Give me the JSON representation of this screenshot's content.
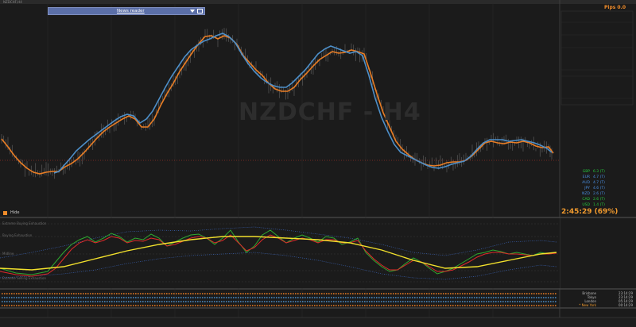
{
  "window": {
    "title": "NZDCHF,H4"
  },
  "news_reader": {
    "label": "News reader"
  },
  "watermark": "NZDCHF - H4",
  "pips": "Pips 0.0",
  "timer": "2:45:29 (69%)",
  "hide_button": "Hide",
  "indicator_labels": [
    "Extreme Buying Exhaustion",
    "Buying Exhaustion",
    "Midline",
    "Extreme Selling Exhaustion"
  ],
  "sessions": [
    {
      "name": "Brisbane",
      "value": "23:14:29"
    },
    {
      "name": "Tokyo",
      "value": "23:14:29"
    },
    {
      "name": "London",
      "value": "05:14:29"
    },
    {
      "name": "* New York",
      "value": "00:14:29"
    }
  ],
  "currency_strength": [
    {
      "name": "GBP",
      "value": "6.3 (T)",
      "color": "#27c93f"
    },
    {
      "name": "EUR",
      "value": "4.7 (T)",
      "color": "#4a90e2"
    },
    {
      "name": "AUD",
      "value": "4.7 (T)",
      "color": "#4a90e2"
    },
    {
      "name": "JPY",
      "value": "4.6 (T)",
      "color": "#4a90e2"
    },
    {
      "name": "NZD",
      "value": "2.6 (T)",
      "color": "#4a90e2"
    },
    {
      "name": "CAD",
      "value": "2.6 (T)",
      "color": "#27c93f"
    },
    {
      "name": "USD",
      "value": "1.4 (T)",
      "color": "#27c93f"
    }
  ],
  "colors": {
    "ma_blue": "#4d8fc9",
    "ma_orange": "#e97d24",
    "osc_yellow": "#f2e02c",
    "osc_red": "#e02a2a",
    "osc_green": "#2fa82f",
    "dotted_blue": "#3b64b8",
    "price_red": "#d33a2c"
  },
  "chart_data": {
    "type": "line",
    "x": [
      0,
      4,
      8,
      12,
      16,
      20,
      24,
      28,
      32,
      36,
      40,
      44,
      48,
      52,
      56,
      60,
      64,
      68,
      72,
      76,
      80,
      84,
      88,
      92,
      96,
      100,
      104,
      108,
      112,
      116,
      120,
      124,
      128,
      132,
      136,
      140,
      144,
      148,
      152,
      156,
      160,
      164,
      168,
      172,
      176,
      180,
      184,
      188,
      192,
      196,
      200,
      204,
      208,
      212,
      216,
      220,
      224,
      228,
      232,
      236,
      240,
      244,
      248,
      252,
      256,
      260,
      264,
      268,
      272,
      276,
      280,
      284,
      288,
      292,
      296,
      300,
      304,
      308,
      312,
      316,
      320,
      324,
      328,
      332,
      336,
      340,
      344,
      348,
      352,
      356,
      360,
      364,
      368,
      372,
      376,
      380,
      384,
      388,
      392,
      396,
      400,
      404,
      408,
      412,
      416,
      420,
      424,
      428,
      432,
      436,
      440,
      444,
      448,
      452,
      456,
      460,
      464,
      468,
      472,
      476,
      480,
      484,
      488,
      492,
      496,
      500,
      504,
      508,
      512,
      516,
      520,
      524,
      528,
      532,
      536,
      540,
      544,
      548,
      552,
      556,
      560,
      564,
      568,
      572,
      576,
      580,
      584,
      588,
      592,
      596,
      600,
      604,
      608,
      612,
      616,
      620,
      624,
      628,
      632,
      636,
      640,
      644,
      648,
      652,
      656,
      660,
      664,
      668,
      672,
      676,
      680,
      684,
      688,
      692,
      696,
      700
    ],
    "series": []
  }
}
